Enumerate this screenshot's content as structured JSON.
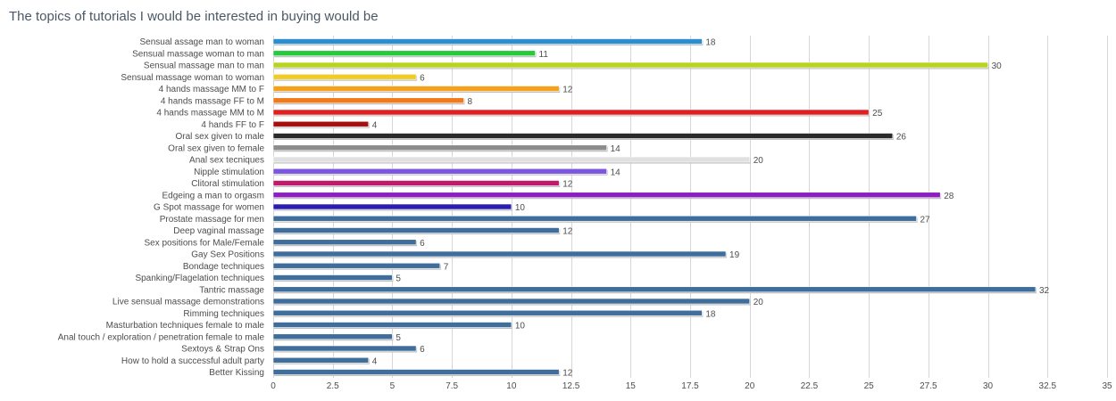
{
  "chart_data": {
    "type": "bar",
    "orientation": "horizontal",
    "title": "The topics of tutorials I would be interested in buying would be",
    "xlabel": "",
    "ylabel": "",
    "xlim": [
      0,
      35
    ],
    "ticks": [
      "0",
      "2.5",
      "5",
      "7.5",
      "10",
      "12.5",
      "15",
      "17.5",
      "20",
      "22.5",
      "25",
      "27.5",
      "30",
      "32.5",
      "35"
    ],
    "tick_values": [
      0,
      2.5,
      5,
      7.5,
      10,
      12.5,
      15,
      17.5,
      20,
      22.5,
      25,
      27.5,
      30,
      32.5,
      35
    ],
    "grid": true,
    "legend": "none",
    "bars": [
      {
        "label": "Sensual assage man to woman",
        "value": 18,
        "display": "18",
        "color": "#2b8fcf"
      },
      {
        "label": "Sensual massage woman to man",
        "value": 11,
        "display": "11",
        "color": "#27c93d"
      },
      {
        "label": "Sensual massage man to man",
        "value": 30,
        "display": "30",
        "color": "#b8d41e"
      },
      {
        "label": "Sensual massage woman to woman",
        "value": 6,
        "display": "6",
        "color": "#f2cc26"
      },
      {
        "label": "4 hands massage MM to F",
        "value": 12,
        "display": "12",
        "color": "#f5a11c"
      },
      {
        "label": "4 hands massage FF to M",
        "value": 8,
        "display": "8",
        "color": "#f07a1c"
      },
      {
        "label": "4 hands massage MM to M",
        "value": 25,
        "display": "25",
        "color": "#e02020"
      },
      {
        "label": "4 hands FF to F",
        "value": 4,
        "display": "4",
        "color": "#a50f0f"
      },
      {
        "label": "Oral sex given to male",
        "value": 26,
        "display": "26",
        "color": "#2a2a2a"
      },
      {
        "label": "Oral sex given to female",
        "value": 14,
        "display": "14",
        "color": "#8c8c8c"
      },
      {
        "label": "Anal sex tecniques",
        "value": 20,
        "display": "20",
        "color": "#e0e0e0"
      },
      {
        "label": "Nipple stimulation",
        "value": 14,
        "display": "14",
        "color": "#7b56e0"
      },
      {
        "label": "Clitoral stimulation",
        "value": 12,
        "display": "12",
        "color": "#c01a6a"
      },
      {
        "label": "Edgeing a man to orgasm",
        "value": 28,
        "display": "28",
        "color": "#8c1fc0"
      },
      {
        "label": "G Spot massage for women",
        "value": 10,
        "display": "10",
        "color": "#2a1eb0"
      },
      {
        "label": "Prostate massage for men",
        "value": 27,
        "display": "27",
        "color": "#3f6d9c"
      },
      {
        "label": "Deep vaginal massage",
        "value": 12,
        "display": "12",
        "color": "#3f6d9c"
      },
      {
        "label": "Sex positions for Male/Female",
        "value": 6,
        "display": "6",
        "color": "#3f6d9c"
      },
      {
        "label": "Gay Sex Positions",
        "value": 19,
        "display": "19",
        "color": "#3f6d9c"
      },
      {
        "label": "Bondage techniques",
        "value": 7,
        "display": "7",
        "color": "#3f6d9c"
      },
      {
        "label": "Spanking/Flagelation techniques",
        "value": 5,
        "display": "5",
        "color": "#3f6d9c"
      },
      {
        "label": "Tantric massage",
        "value": 32,
        "display": "32",
        "color": "#3f6d9c"
      },
      {
        "label": "Live sensual massage demonstrations",
        "value": 20,
        "display": "20",
        "color": "#3f6d9c"
      },
      {
        "label": "Rimming techniques",
        "value": 18,
        "display": "18",
        "color": "#3f6d9c"
      },
      {
        "label": "Masturbation techniques female to male",
        "value": 10,
        "display": "10",
        "color": "#3f6d9c"
      },
      {
        "label": "Anal touch / exploration / penetration female to male",
        "value": 5,
        "display": "5",
        "color": "#3f6d9c"
      },
      {
        "label": "Sextoys & Strap Ons",
        "value": 6,
        "display": "6",
        "color": "#3f6d9c"
      },
      {
        "label": "How to hold a successful adult party",
        "value": 4,
        "display": "4",
        "color": "#3f6d9c"
      },
      {
        "label": "Better Kissing",
        "value": 12,
        "display": "12",
        "color": "#3f6d9c"
      }
    ]
  }
}
